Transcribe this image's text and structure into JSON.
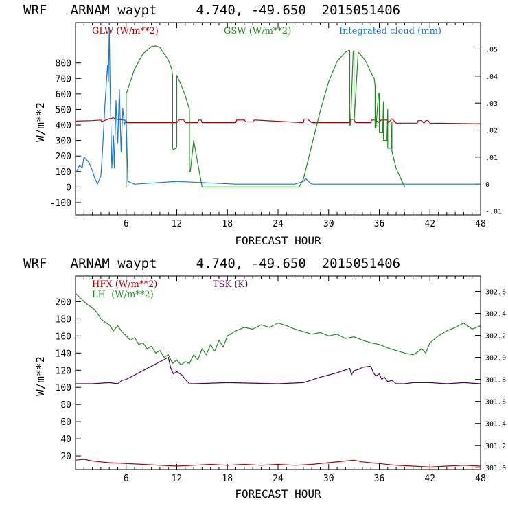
{
  "chart_data": [
    {
      "type": "line",
      "title": "WRF   ARNAM waypt     4.740, -49.650  2015051406",
      "xlabel": "FORECAST HOUR",
      "ylabel": "W/m**2",
      "xlim": [
        0,
        48
      ],
      "ylim": [
        -180,
        1060
      ],
      "xticks": [
        6,
        12,
        18,
        24,
        30,
        36,
        42,
        48
      ],
      "yticks": [
        -100,
        0,
        100,
        200,
        300,
        400,
        500,
        600,
        700,
        800
      ],
      "y2lim": [
        -0.0114,
        0.0598
      ],
      "y2ticks": [
        -0.01,
        0,
        0.01,
        0.02,
        0.03,
        0.04,
        0.05
      ],
      "y2ticklabels": [
        "-.01",
        "0",
        ".01",
        ".02",
        ".03",
        ".04",
        ".05"
      ],
      "series": [
        {
          "name": "GLW (W/m**2)",
          "color": "#b00000",
          "axis": "left",
          "x": [
            0,
            2,
            3,
            3.1,
            4,
            4.5,
            5,
            6,
            6.1,
            12,
            12.3,
            12.8,
            13,
            14.5,
            14.6,
            14.9,
            15,
            19,
            19.1,
            20,
            20.2,
            21,
            21.2,
            27,
            27.1,
            27.5,
            28,
            32.5,
            32.6,
            33,
            33.2,
            35,
            35.1,
            35.5,
            36,
            36.2,
            37,
            37.1,
            37.5,
            38,
            40.5,
            40.6,
            41,
            41.3,
            41.5,
            41.8,
            42,
            48
          ],
          "y": [
            425,
            428,
            432,
            422,
            440,
            445,
            436,
            430,
            415,
            415,
            435,
            435,
            415,
            415,
            432,
            432,
            415,
            415,
            432,
            432,
            420,
            420,
            432,
            415,
            438,
            438,
            415,
            415,
            436,
            436,
            415,
            415,
            432,
            432,
            415,
            432,
            432,
            415,
            440,
            412,
            412,
            428,
            428,
            412,
            428,
            428,
            412,
            408
          ]
        },
        {
          "name": "GSW (W/m**2)",
          "color": "#1e8a1e",
          "axis": "left",
          "x": [
            5.9,
            6,
            6,
            7,
            8,
            9,
            9.5,
            10,
            11,
            11.4,
            11.5,
            11.5,
            11.6,
            11.9,
            12,
            12,
            12.5,
            13,
            13.5,
            13.5,
            13.6,
            14,
            14.5,
            15,
            26.5,
            27,
            28,
            29,
            30,
            31,
            32,
            32.4,
            32.5,
            32.5,
            32.6,
            32.9,
            33,
            33,
            33.5,
            34,
            34.5,
            35,
            35.4,
            35.5,
            35.5,
            35.6,
            35.9,
            36,
            36,
            36.4,
            36.5,
            36.5,
            36.9,
            37,
            37,
            37.4,
            37.5,
            37.5,
            38,
            39
          ],
          "y": [
            0,
            0,
            600,
            760,
            860,
            905,
            910,
            900,
            820,
            760,
            720,
            250,
            240,
            250,
            260,
            720,
            660,
            590,
            500,
            100,
            100,
            300,
            150,
            0,
            0,
            50,
            270,
            490,
            680,
            810,
            870,
            880,
            880,
            400,
            400,
            870,
            880,
            410,
            870,
            840,
            800,
            740,
            700,
            650,
            380,
            380,
            600,
            600,
            350,
            350,
            550,
            300,
            300,
            500,
            250,
            250,
            420,
            230,
            120,
            0
          ]
        },
        {
          "name": "Integrated cloud (mm)",
          "color": "#1a78d6",
          "axis": "right",
          "x": [
            0,
            0.5,
            0.8,
            1,
            1.3,
            1.6,
            2,
            2.3,
            2.6,
            3,
            3.2,
            3.5,
            3.8,
            3.9,
            4,
            4.1,
            4.3,
            4.5,
            4.6,
            4.8,
            5,
            5.2,
            5.4,
            5.6,
            5.8,
            6,
            6.2,
            7,
            12,
            19,
            26,
            27,
            27.3,
            27.6,
            28,
            36,
            48
          ],
          "y": [
            0.004,
            0.007,
            0.006,
            0.01,
            0.009,
            0.008,
            0.005,
            0.002,
            0,
            0.003,
            0.012,
            0.03,
            0.044,
            0.038,
            0.058,
            0.036,
            0.006,
            0.018,
            0.006,
            0.031,
            0.015,
            0.035,
            0.012,
            0.028,
            0.022,
            0.024,
            0.001,
            0,
            0.001,
            0,
            0,
            0.001,
            0.002,
            0.001,
            0,
            0,
            0
          ]
        }
      ]
    },
    {
      "type": "line",
      "title": "WRF   ARNAM waypt     4.740, -49.650  2015051406",
      "xlabel": "FORECAST HOUR",
      "ylabel": "W/m**2",
      "xlim": [
        0,
        48
      ],
      "ylim": [
        4,
        230
      ],
      "xticks": [
        6,
        12,
        18,
        24,
        30,
        36,
        42,
        48
      ],
      "yticks": [
        20,
        40,
        60,
        80,
        100,
        120,
        140,
        160,
        180,
        200
      ],
      "y2lim": [
        300.98,
        302.74
      ],
      "y2ticks": [
        301.0,
        301.2,
        301.4,
        301.6,
        301.8,
        302.0,
        302.2,
        302.4,
        302.6
      ],
      "y2ticklabels": [
        "301.0",
        "301.2",
        "301.4",
        "301.6",
        "301.8",
        "302.0",
        "302.2",
        "302.4",
        "302.6"
      ],
      "series": [
        {
          "name": "HFX (W/m**2)",
          "color": "#b00000",
          "axis": "left",
          "x": [
            0,
            1,
            2,
            3,
            4,
            6,
            8,
            10,
            12,
            14,
            16,
            18,
            20,
            22,
            24,
            26,
            28,
            30,
            32,
            33,
            34,
            36,
            38,
            40,
            42,
            44,
            46,
            48
          ],
          "y": [
            15,
            16,
            14,
            13,
            12,
            11,
            10,
            9,
            8,
            9,
            10,
            9,
            10,
            9,
            10,
            9,
            10,
            12,
            14,
            15,
            13,
            11,
            9,
            8,
            7,
            8,
            9,
            8
          ]
        },
        {
          "name": "LH  (W/m**2)",
          "color": "#1e8a1e",
          "axis": "left",
          "x": [
            0,
            0.5,
            1,
            1.5,
            2,
            2.5,
            3,
            3.5,
            4,
            4.5,
            5,
            5.5,
            6,
            6.5,
            7,
            7.5,
            8,
            8.5,
            9,
            9.5,
            10,
            10.5,
            11,
            11.5,
            12,
            12.5,
            13,
            13.5,
            14,
            14.5,
            15,
            15.5,
            16,
            16.5,
            17,
            17.5,
            18,
            18.5,
            19,
            20,
            21,
            22,
            23,
            24,
            25,
            26,
            27,
            28,
            29,
            30,
            31,
            32,
            33,
            34,
            35,
            36,
            37,
            38,
            39,
            40,
            40.5,
            41,
            41.5,
            42,
            43,
            44,
            45,
            46,
            47,
            48
          ],
          "y": [
            210,
            205,
            200,
            196,
            193,
            188,
            180,
            176,
            173,
            166,
            172,
            165,
            160,
            155,
            158,
            150,
            152,
            145,
            148,
            140,
            143,
            135,
            138,
            128,
            132,
            126,
            130,
            128,
            138,
            132,
            145,
            138,
            150,
            142,
            155,
            147,
            160,
            163,
            166,
            170,
            168,
            173,
            170,
            175,
            172,
            168,
            165,
            162,
            164,
            160,
            162,
            157,
            159,
            155,
            152,
            150,
            146,
            143,
            140,
            138,
            141,
            145,
            140,
            152,
            160,
            166,
            170,
            175,
            168,
            172
          ]
        },
        {
          "name": "TSK (K)",
          "color": "#50005a",
          "axis": "right",
          "x": [
            0,
            2,
            4,
            5,
            5.5,
            6,
            8,
            10,
            11,
            11.3,
            11.6,
            12,
            12.6,
            13,
            13.5,
            14,
            18,
            24,
            27,
            29,
            31,
            32.5,
            32.7,
            33,
            33.5,
            34,
            35,
            35.3,
            35.6,
            36,
            36.3,
            36.6,
            37,
            37.5,
            38,
            39,
            40,
            42,
            44,
            46,
            48
          ],
          "y": [
            301.76,
            301.76,
            301.77,
            301.76,
            301.79,
            301.8,
            301.88,
            301.96,
            302.0,
            301.9,
            301.85,
            301.87,
            301.84,
            301.8,
            301.76,
            301.76,
            301.77,
            301.76,
            301.77,
            301.82,
            301.86,
            301.9,
            301.84,
            301.88,
            301.89,
            301.91,
            301.92,
            301.86,
            301.83,
            301.85,
            301.8,
            301.82,
            301.78,
            301.79,
            301.76,
            301.76,
            301.77,
            301.77,
            301.76,
            301.77,
            301.76
          ]
        }
      ]
    }
  ]
}
